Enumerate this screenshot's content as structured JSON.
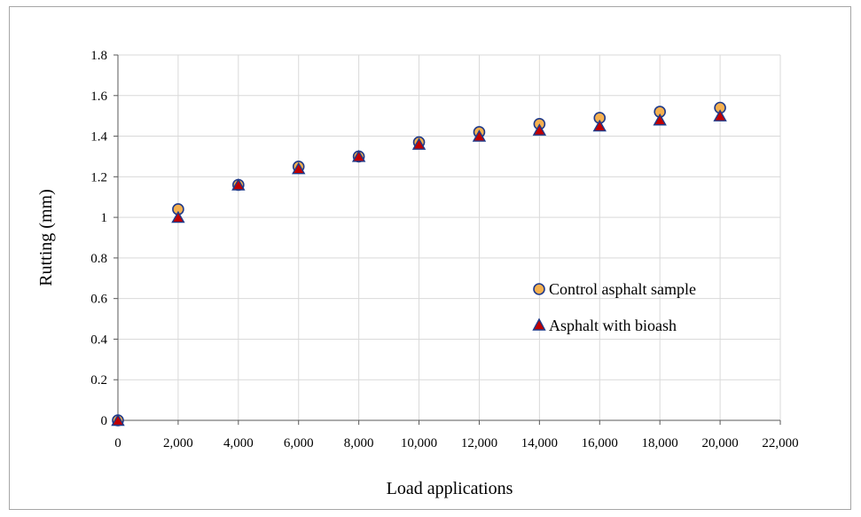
{
  "chart_data": {
    "type": "scatter",
    "title": "",
    "xlabel": "Load applications",
    "ylabel": "Rutting (mm)",
    "xlim": [
      0,
      22000
    ],
    "ylim": [
      0,
      1.8
    ],
    "grid": true,
    "legend_position": "center-right",
    "x_ticks": [
      "0",
      "2,000",
      "4,000",
      "6,000",
      "8,000",
      "10,000",
      "12,000",
      "14,000",
      "16,000",
      "18,000",
      "20,000",
      "22,000"
    ],
    "y_ticks": [
      "0",
      "0.2",
      "0.4",
      "0.6",
      "0.8",
      "1",
      "1.2",
      "1.4",
      "1.6",
      "1.8"
    ],
    "x": [
      0,
      2000,
      4000,
      6000,
      8000,
      10000,
      12000,
      14000,
      16000,
      18000,
      20000
    ],
    "series": [
      {
        "name": "Control asphalt sample",
        "marker": "circle",
        "fill": "#f5b04f",
        "stroke": "#1f3a8a",
        "values": [
          0,
          1.04,
          1.16,
          1.25,
          1.3,
          1.37,
          1.42,
          1.46,
          1.49,
          1.52,
          1.54
        ]
      },
      {
        "name": "Asphalt with bioash",
        "marker": "triangle",
        "fill": "#c00000",
        "stroke": "#1f3a8a",
        "values": [
          0,
          1.0,
          1.16,
          1.24,
          1.3,
          1.36,
          1.4,
          1.43,
          1.45,
          1.48,
          1.5
        ]
      }
    ]
  }
}
